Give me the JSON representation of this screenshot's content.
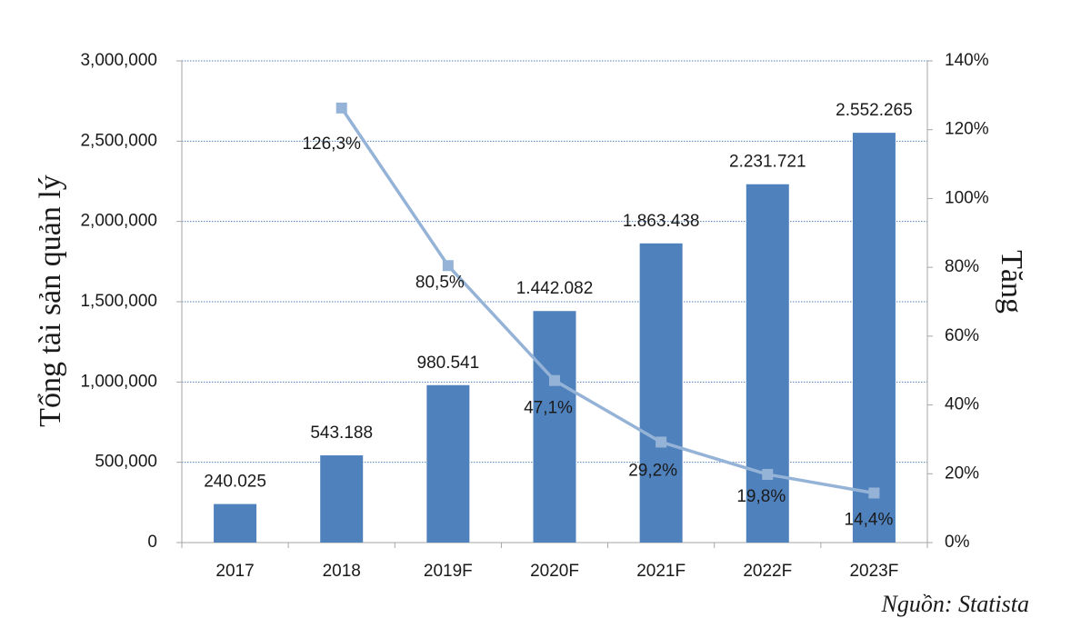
{
  "chart_data": {
    "type": "bar+line",
    "categories": [
      "2017",
      "2018",
      "2019F",
      "2020F",
      "2021F",
      "2022F",
      "2023F"
    ],
    "series": [
      {
        "name": "Tổng tài sản quản lý",
        "type": "bar",
        "axis": "left",
        "color": "#4f81bd",
        "values": [
          240025,
          543188,
          980541,
          1442082,
          1863438,
          2231721,
          2552265
        ],
        "labels": [
          "240.025",
          "543.188",
          "980.541",
          "1.442.082",
          "1.863.438",
          "2.231.721",
          "2.552.265"
        ]
      },
      {
        "name": "Tăng",
        "type": "line",
        "axis": "right",
        "color": "#95b3d7",
        "values": [
          null,
          126.3,
          80.5,
          47.1,
          29.2,
          19.8,
          14.4
        ],
        "labels": [
          "",
          "126,3%",
          "80,5%",
          "47,1%",
          "29,2%",
          "19,8%",
          "14,4%"
        ]
      }
    ],
    "y_left": {
      "label": "Tổng tài sản quản lý",
      "lim": [
        0,
        3000000
      ],
      "ticks": [
        0,
        500000,
        1000000,
        1500000,
        2000000,
        2500000,
        3000000
      ],
      "tick_labels": [
        "0",
        "500,000",
        "1,000,000",
        "1,500,000",
        "2,000,000",
        "2,500,000",
        "3,000,000"
      ]
    },
    "y_right": {
      "label": "Tăng",
      "lim": [
        0,
        140
      ],
      "ticks": [
        0,
        20,
        40,
        60,
        80,
        100,
        120,
        140
      ],
      "tick_labels": [
        "0%",
        "20%",
        "40%",
        "60%",
        "80%",
        "100%",
        "120%",
        "140%"
      ]
    },
    "grid": true,
    "gridline_color": "#4f81bd"
  },
  "source": "Nguồn: Statista"
}
